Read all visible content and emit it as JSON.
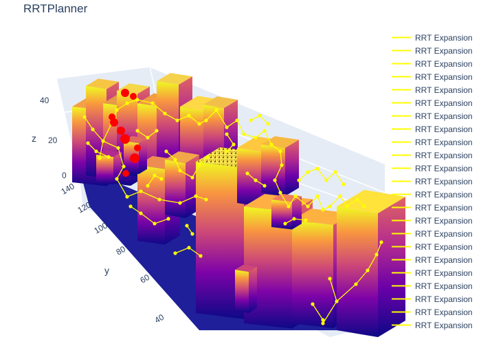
{
  "chart_data": {
    "type": "scatter3d",
    "title": "RRTPlanner",
    "axes": {
      "z": {
        "label": "z",
        "ticks": [
          0,
          20,
          40
        ],
        "range": [
          0,
          48
        ]
      },
      "y": {
        "label": "y",
        "ticks": [
          40,
          60,
          80,
          100,
          120,
          140
        ],
        "range": [
          30,
          145
        ]
      },
      "x": {
        "label": "",
        "ticks": []
      }
    },
    "legend": {
      "placement": "right",
      "entries": [
        "RRT Expansion",
        "RRT Expansion",
        "RRT Expansion",
        "RRT Expansion",
        "RRT Expansion",
        "RRT Expansion",
        "RRT Expansion",
        "RRT Expansion",
        "RRT Expansion",
        "RRT Expansion",
        "RRT Expansion",
        "RRT Expansion",
        "RRT Expansion",
        "RRT Expansion",
        "RRT Expansion",
        "RRT Expansion",
        "RRT Expansion",
        "RRT Expansion",
        "RRT Expansion",
        "RRT Expansion",
        "RRT Expansion",
        "RRT Expansion",
        "RRT Expansion"
      ]
    },
    "colors": {
      "expansion": "#ffff00",
      "obstacle_points": "#ff0000",
      "ground": "#1f1f9a",
      "scene_bg": "#e5ecf6",
      "colorscale": [
        "#0d0887",
        "#7e03a8",
        "#cc4778",
        "#f89540",
        "#f0f921"
      ]
    },
    "grid": true
  }
}
